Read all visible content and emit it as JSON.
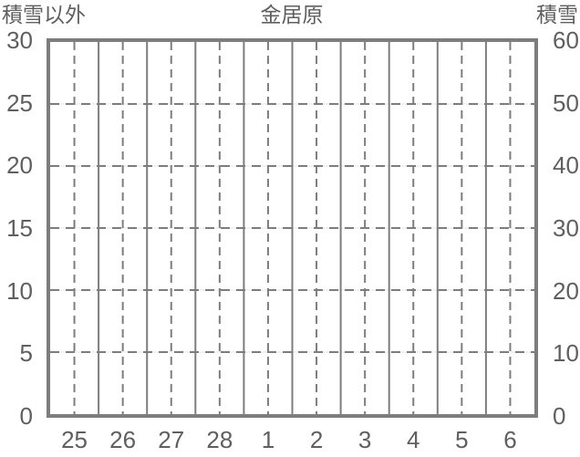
{
  "colors": {
    "background": "#ffffff",
    "frame": "#7d7d7d",
    "grid": "#7d7d7d",
    "grid_light": "#e4e4e4",
    "text": "#5f5f5f"
  },
  "chart_data": {
    "type": "line",
    "title": "金居原",
    "left_axis": {
      "label": "積雪以外",
      "ticks": [
        "30",
        "25",
        "20",
        "15",
        "10",
        "5",
        "0"
      ],
      "range": [
        0,
        30
      ]
    },
    "right_axis": {
      "label": "積雪",
      "ticks": [
        "60",
        "50",
        "40",
        "30",
        "20",
        "10",
        "0"
      ],
      "range": [
        0,
        60
      ]
    },
    "x_axis": {
      "tick_labels": [
        "25",
        "26",
        "27",
        "28",
        "1",
        "2",
        "3",
        "4",
        "5",
        "6"
      ],
      "note": "day categories; solid gridlines at day boundaries, dashed gridlines at day centers"
    },
    "series": [],
    "legend": "none",
    "grid": {
      "horizontal": "dashed over light solid",
      "vertical_day_boundaries": "solid",
      "vertical_day_centers": "dashed"
    }
  }
}
